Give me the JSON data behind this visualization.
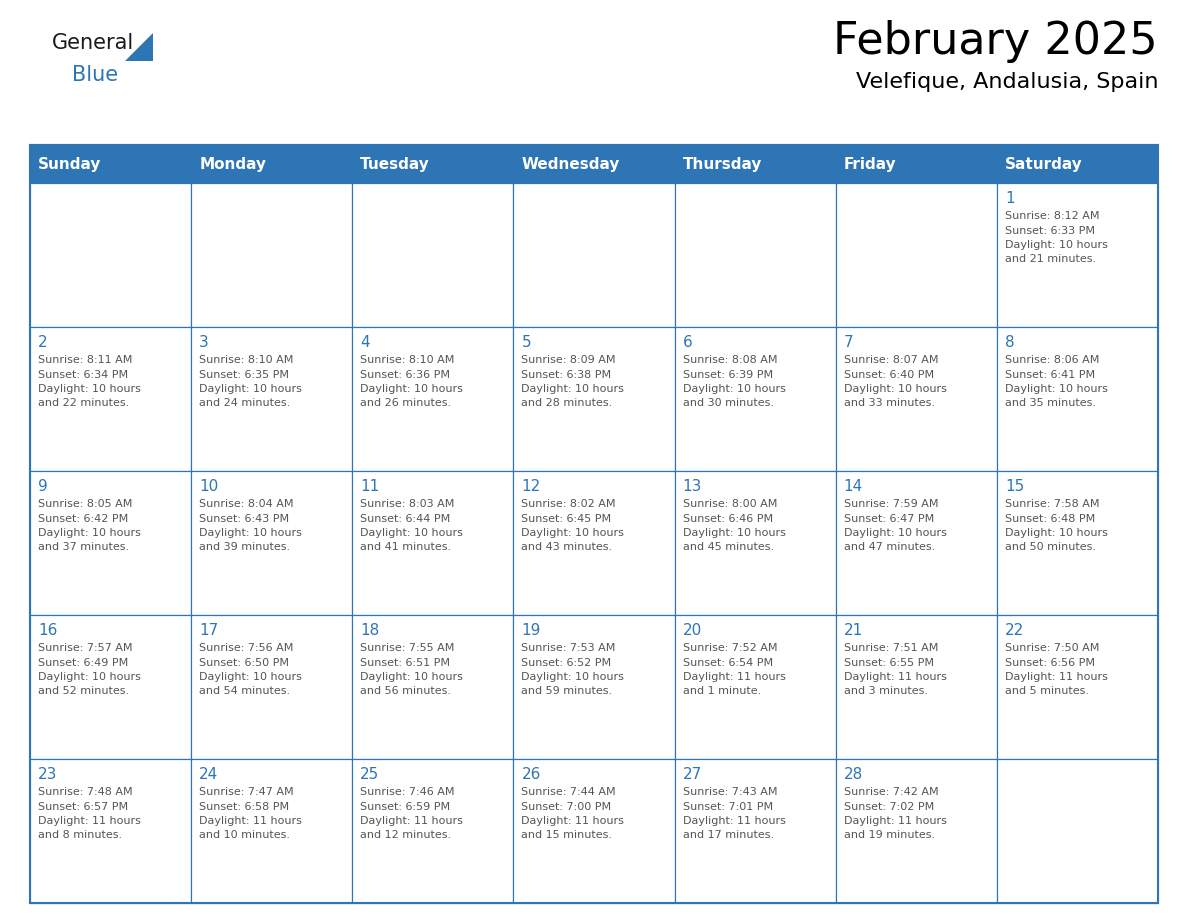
{
  "title": "February 2025",
  "subtitle": "Velefique, Andalusia, Spain",
  "header_color": "#2E75B6",
  "header_text_color": "#FFFFFF",
  "cell_bg_color": "#FFFFFF",
  "border_color": "#2E75B6",
  "day_number_color": "#2E75B6",
  "detail_text_color": "#555555",
  "days_of_week": [
    "Sunday",
    "Monday",
    "Tuesday",
    "Wednesday",
    "Thursday",
    "Friday",
    "Saturday"
  ],
  "weeks": [
    [
      {
        "day": "",
        "info": ""
      },
      {
        "day": "",
        "info": ""
      },
      {
        "day": "",
        "info": ""
      },
      {
        "day": "",
        "info": ""
      },
      {
        "day": "",
        "info": ""
      },
      {
        "day": "",
        "info": ""
      },
      {
        "day": "1",
        "info": "Sunrise: 8:12 AM\nSunset: 6:33 PM\nDaylight: 10 hours\nand 21 minutes."
      }
    ],
    [
      {
        "day": "2",
        "info": "Sunrise: 8:11 AM\nSunset: 6:34 PM\nDaylight: 10 hours\nand 22 minutes."
      },
      {
        "day": "3",
        "info": "Sunrise: 8:10 AM\nSunset: 6:35 PM\nDaylight: 10 hours\nand 24 minutes."
      },
      {
        "day": "4",
        "info": "Sunrise: 8:10 AM\nSunset: 6:36 PM\nDaylight: 10 hours\nand 26 minutes."
      },
      {
        "day": "5",
        "info": "Sunrise: 8:09 AM\nSunset: 6:38 PM\nDaylight: 10 hours\nand 28 minutes."
      },
      {
        "day": "6",
        "info": "Sunrise: 8:08 AM\nSunset: 6:39 PM\nDaylight: 10 hours\nand 30 minutes."
      },
      {
        "day": "7",
        "info": "Sunrise: 8:07 AM\nSunset: 6:40 PM\nDaylight: 10 hours\nand 33 minutes."
      },
      {
        "day": "8",
        "info": "Sunrise: 8:06 AM\nSunset: 6:41 PM\nDaylight: 10 hours\nand 35 minutes."
      }
    ],
    [
      {
        "day": "9",
        "info": "Sunrise: 8:05 AM\nSunset: 6:42 PM\nDaylight: 10 hours\nand 37 minutes."
      },
      {
        "day": "10",
        "info": "Sunrise: 8:04 AM\nSunset: 6:43 PM\nDaylight: 10 hours\nand 39 minutes."
      },
      {
        "day": "11",
        "info": "Sunrise: 8:03 AM\nSunset: 6:44 PM\nDaylight: 10 hours\nand 41 minutes."
      },
      {
        "day": "12",
        "info": "Sunrise: 8:02 AM\nSunset: 6:45 PM\nDaylight: 10 hours\nand 43 minutes."
      },
      {
        "day": "13",
        "info": "Sunrise: 8:00 AM\nSunset: 6:46 PM\nDaylight: 10 hours\nand 45 minutes."
      },
      {
        "day": "14",
        "info": "Sunrise: 7:59 AM\nSunset: 6:47 PM\nDaylight: 10 hours\nand 47 minutes."
      },
      {
        "day": "15",
        "info": "Sunrise: 7:58 AM\nSunset: 6:48 PM\nDaylight: 10 hours\nand 50 minutes."
      }
    ],
    [
      {
        "day": "16",
        "info": "Sunrise: 7:57 AM\nSunset: 6:49 PM\nDaylight: 10 hours\nand 52 minutes."
      },
      {
        "day": "17",
        "info": "Sunrise: 7:56 AM\nSunset: 6:50 PM\nDaylight: 10 hours\nand 54 minutes."
      },
      {
        "day": "18",
        "info": "Sunrise: 7:55 AM\nSunset: 6:51 PM\nDaylight: 10 hours\nand 56 minutes."
      },
      {
        "day": "19",
        "info": "Sunrise: 7:53 AM\nSunset: 6:52 PM\nDaylight: 10 hours\nand 59 minutes."
      },
      {
        "day": "20",
        "info": "Sunrise: 7:52 AM\nSunset: 6:54 PM\nDaylight: 11 hours\nand 1 minute."
      },
      {
        "day": "21",
        "info": "Sunrise: 7:51 AM\nSunset: 6:55 PM\nDaylight: 11 hours\nand 3 minutes."
      },
      {
        "day": "22",
        "info": "Sunrise: 7:50 AM\nSunset: 6:56 PM\nDaylight: 11 hours\nand 5 minutes."
      }
    ],
    [
      {
        "day": "23",
        "info": "Sunrise: 7:48 AM\nSunset: 6:57 PM\nDaylight: 11 hours\nand 8 minutes."
      },
      {
        "day": "24",
        "info": "Sunrise: 7:47 AM\nSunset: 6:58 PM\nDaylight: 11 hours\nand 10 minutes."
      },
      {
        "day": "25",
        "info": "Sunrise: 7:46 AM\nSunset: 6:59 PM\nDaylight: 11 hours\nand 12 minutes."
      },
      {
        "day": "26",
        "info": "Sunrise: 7:44 AM\nSunset: 7:00 PM\nDaylight: 11 hours\nand 15 minutes."
      },
      {
        "day": "27",
        "info": "Sunrise: 7:43 AM\nSunset: 7:01 PM\nDaylight: 11 hours\nand 17 minutes."
      },
      {
        "day": "28",
        "info": "Sunrise: 7:42 AM\nSunset: 7:02 PM\nDaylight: 11 hours\nand 19 minutes."
      },
      {
        "day": "",
        "info": ""
      }
    ]
  ],
  "logo_color_general": "#1a1a1a",
  "logo_color_blue": "#2E75B6",
  "logo_triangle_color": "#2E75B6",
  "title_fontsize": 32,
  "subtitle_fontsize": 16,
  "header_fontsize": 11,
  "day_num_fontsize": 11,
  "detail_fontsize": 8
}
